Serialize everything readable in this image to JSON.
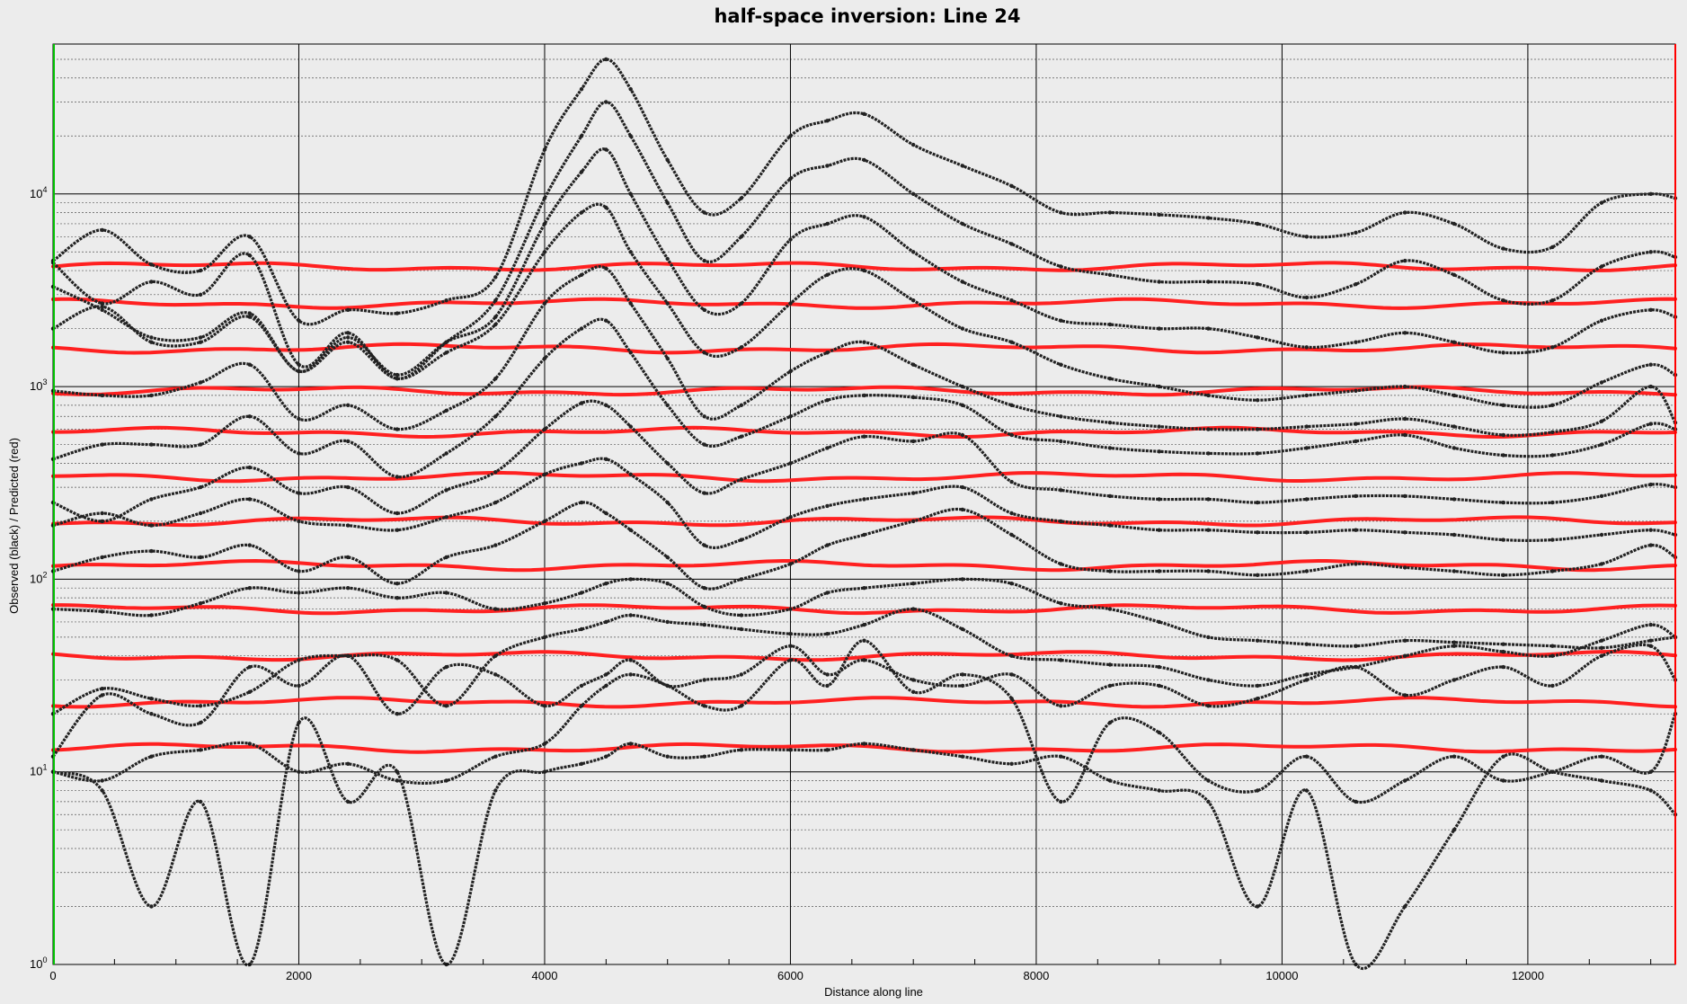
{
  "chart_data": {
    "type": "line",
    "title": "half-space inversion: Line 24",
    "xlabel": "Distance along line",
    "ylabel": "Observed (black) / Predicted (red)",
    "yscale": "log",
    "xlim": [
      0,
      13200
    ],
    "ylim": [
      1,
      60000
    ],
    "x_ticks": [
      0,
      2000,
      4000,
      6000,
      8000,
      10000,
      12000
    ],
    "x_tick_labels": [
      "0",
      "2000",
      "4000",
      "6000",
      "8000",
      "10000",
      "12000"
    ],
    "y_ticks": [
      {
        "value": 1,
        "base": "10",
        "exp": "0"
      },
      {
        "value": 10,
        "base": "10",
        "exp": "1"
      },
      {
        "value": 100,
        "base": "10",
        "exp": "2"
      },
      {
        "value": 1000,
        "base": "10",
        "exp": "3"
      },
      {
        "value": 10000,
        "base": "10",
        "exp": "4"
      }
    ],
    "grid": true,
    "colors": {
      "observed": "#222222",
      "predicted": "#ff2020",
      "left_edge": "#00c000",
      "right_edge": "#ff0000"
    },
    "observed_x": [
      0,
      400,
      800,
      1200,
      1600,
      2000,
      2400,
      2800,
      3200,
      3600,
      4000,
      4300,
      4500,
      4700,
      5000,
      5300,
      5600,
      6000,
      6300,
      6600,
      7000,
      7400,
      7800,
      8200,
      8600,
      9000,
      9400,
      9800,
      10200,
      10600,
      11000,
      11400,
      11800,
      12200,
      12600,
      13000,
      13200
    ],
    "observed": [
      {
        "name": "ch1",
        "values": [
          4500,
          6500,
          4300,
          4000,
          6000,
          2200,
          2500,
          2400,
          2800,
          3700,
          17000,
          35000,
          50000,
          35000,
          15000,
          8000,
          9500,
          20000,
          24000,
          26000,
          18000,
          14000,
          11000,
          8000,
          8000,
          7800,
          7500,
          7000,
          6000,
          6300,
          8000,
          7000,
          5200,
          5300,
          9000,
          10000,
          9500
        ]
      },
      {
        "name": "ch2",
        "values": [
          4400,
          2700,
          3500,
          3000,
          4800,
          1300,
          1900,
          1100,
          1700,
          2800,
          9500,
          20000,
          30000,
          20000,
          9000,
          4500,
          6000,
          12000,
          14000,
          15000,
          10000,
          7000,
          5500,
          4200,
          3800,
          3500,
          3500,
          3400,
          2900,
          3400,
          4500,
          3800,
          2800,
          2800,
          4200,
          5000,
          4700
        ]
      },
      {
        "name": "ch3",
        "values": [
          3300,
          2500,
          1800,
          1800,
          2400,
          1200,
          1800,
          1150,
          1700,
          2300,
          7000,
          13000,
          17000,
          10000,
          4600,
          2500,
          2700,
          5800,
          7000,
          7600,
          5000,
          3500,
          2800,
          2200,
          2100,
          2000,
          2000,
          1800,
          1600,
          1700,
          1900,
          1700,
          1500,
          1600,
          2200,
          2500,
          2300
        ]
      },
      {
        "name": "ch4",
        "values": [
          2000,
          2600,
          1700,
          1700,
          2300,
          1200,
          1700,
          1100,
          1500,
          2100,
          5000,
          8000,
          8500,
          5000,
          2700,
          1500,
          1600,
          2700,
          3800,
          4000,
          2800,
          2000,
          1700,
          1300,
          1100,
          1000,
          900,
          850,
          900,
          950,
          1000,
          900,
          800,
          800,
          1050,
          1300,
          1150
        ]
      },
      {
        "name": "ch5",
        "values": [
          950,
          900,
          900,
          1050,
          1300,
          680,
          800,
          600,
          750,
          1100,
          2700,
          3800,
          4100,
          2700,
          1400,
          700,
          800,
          1200,
          1500,
          1700,
          1300,
          1000,
          800,
          700,
          650,
          620,
          600,
          600,
          620,
          640,
          680,
          620,
          560,
          580,
          660,
          1000,
          650
        ]
      },
      {
        "name": "ch6",
        "values": [
          420,
          500,
          500,
          500,
          700,
          450,
          520,
          340,
          450,
          700,
          1400,
          2000,
          2200,
          1500,
          800,
          500,
          550,
          700,
          850,
          900,
          880,
          800,
          560,
          520,
          480,
          460,
          450,
          450,
          480,
          520,
          560,
          480,
          440,
          440,
          500,
          640,
          600
        ]
      },
      {
        "name": "ch7",
        "values": [
          250,
          200,
          260,
          300,
          380,
          280,
          300,
          220,
          290,
          360,
          600,
          820,
          800,
          620,
          400,
          280,
          330,
          400,
          480,
          550,
          520,
          560,
          320,
          290,
          270,
          260,
          260,
          250,
          260,
          270,
          270,
          260,
          250,
          250,
          270,
          310,
          300
        ]
      },
      {
        "name": "ch8",
        "values": [
          190,
          220,
          190,
          220,
          260,
          200,
          190,
          180,
          210,
          250,
          350,
          400,
          420,
          350,
          250,
          150,
          160,
          210,
          240,
          260,
          280,
          300,
          220,
          200,
          190,
          180,
          180,
          175,
          175,
          180,
          175,
          170,
          160,
          160,
          170,
          180,
          170
        ]
      },
      {
        "name": "ch9",
        "values": [
          110,
          130,
          140,
          130,
          150,
          110,
          130,
          95,
          130,
          150,
          200,
          250,
          220,
          180,
          130,
          90,
          100,
          120,
          150,
          170,
          200,
          230,
          170,
          120,
          110,
          110,
          110,
          105,
          110,
          120,
          115,
          110,
          105,
          110,
          120,
          150,
          130
        ]
      },
      {
        "name": "ch10",
        "values": [
          70,
          68,
          65,
          75,
          90,
          85,
          90,
          80,
          85,
          70,
          75,
          85,
          95,
          100,
          95,
          72,
          65,
          70,
          85,
          90,
          95,
          100,
          95,
          75,
          70,
          60,
          50,
          48,
          46,
          45,
          48,
          47,
          46,
          45,
          44,
          48,
          50
        ]
      },
      {
        "name": "ch11",
        "values": [
          20,
          27,
          24,
          22,
          26,
          38,
          40,
          38,
          22,
          40,
          50,
          55,
          60,
          65,
          60,
          58,
          55,
          52,
          52,
          58,
          70,
          55,
          40,
          38,
          36,
          35,
          30,
          28,
          32,
          35,
          40,
          45,
          42,
          40,
          48,
          58,
          50
        ]
      },
      {
        "name": "ch12",
        "values": [
          12,
          25,
          20,
          18,
          35,
          28,
          40,
          20,
          35,
          32,
          22,
          28,
          32,
          38,
          28,
          30,
          32,
          45,
          32,
          38,
          30,
          28,
          32,
          22,
          28,
          28,
          22,
          24,
          30,
          35,
          25,
          30,
          35,
          28,
          40,
          45,
          30
        ]
      },
      {
        "name": "ch13",
        "values": [
          10,
          9,
          12,
          13,
          14,
          10,
          11,
          9,
          9,
          12,
          14,
          22,
          28,
          32,
          28,
          22,
          22,
          38,
          28,
          48,
          26,
          32,
          24,
          7,
          18,
          16,
          9,
          8,
          12,
          7,
          9,
          12,
          9,
          10,
          12,
          10,
          20
        ]
      },
      {
        "name": "ch14",
        "values": [
          10,
          8,
          2,
          7,
          1,
          18,
          7,
          10,
          1,
          8,
          10,
          11,
          12,
          14,
          12,
          12,
          13,
          13,
          13,
          14,
          13,
          12,
          11,
          12,
          9,
          8,
          7,
          2,
          8,
          1,
          2,
          5,
          12,
          10,
          9,
          8,
          6
        ]
      }
    ],
    "predicted": [
      {
        "name": "ch1",
        "level": 4200
      },
      {
        "name": "ch2",
        "level": 2700
      },
      {
        "name": "ch3",
        "level": 1580
      },
      {
        "name": "ch4",
        "level": 950
      },
      {
        "name": "ch5",
        "level": 580
      },
      {
        "name": "ch6",
        "level": 340
      },
      {
        "name": "ch7",
        "level": 200
      },
      {
        "name": "ch8",
        "level": 118
      },
      {
        "name": "ch9",
        "level": 70
      },
      {
        "name": "ch10",
        "level": 40
      },
      {
        "name": "ch11",
        "level": 23
      },
      {
        "name": "ch12",
        "level": 13.3
      }
    ]
  }
}
